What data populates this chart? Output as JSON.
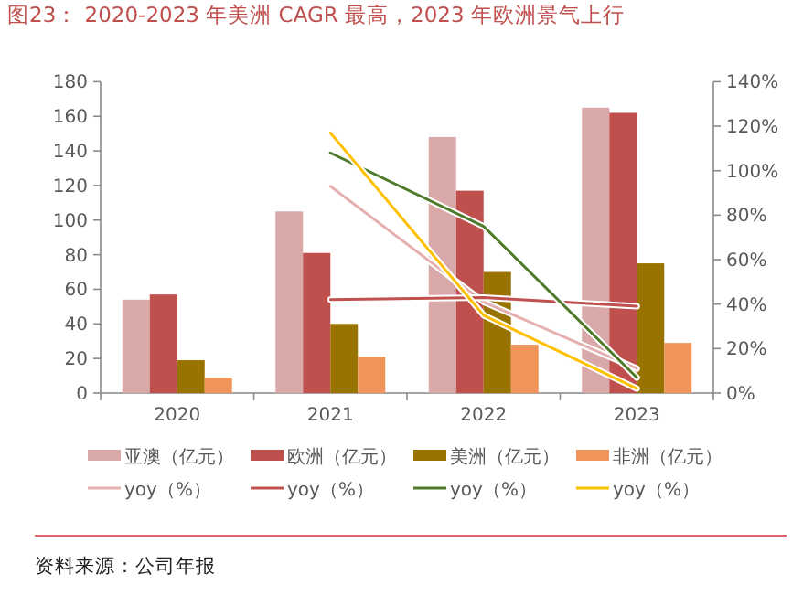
{
  "chart_data": {
    "type": "bar",
    "title": "图23：  2020-2023 年美洲 CAGR 最高，2023 年欧洲景气上行",
    "categories": [
      "2020",
      "2021",
      "2022",
      "2023"
    ],
    "series": [
      {
        "name": "亚澳（亿元）",
        "color": "#d9a9a9",
        "values": [
          54,
          105,
          148,
          165
        ]
      },
      {
        "name": "欧洲（亿元）",
        "color": "#c0504d",
        "values": [
          57,
          81,
          117,
          162
        ]
      },
      {
        "name": "美洲（亿元）",
        "color": "#997300",
        "values": [
          19,
          40,
          70,
          75
        ]
      },
      {
        "name": "非洲（亿元）",
        "color": "#f0955a",
        "values": [
          9,
          21,
          28,
          29
        ]
      },
      {
        "name": "yoy（%）",
        "type": "line",
        "axis": "y2",
        "color": "#e6b0b0",
        "values": [
          null,
          93,
          41,
          11
        ]
      },
      {
        "name": "yoy（%）",
        "type": "line",
        "axis": "y2",
        "color": "#c0504d",
        "values": [
          null,
          42,
          43,
          39
        ]
      },
      {
        "name": "yoy（%）",
        "type": "line",
        "axis": "y2",
        "color": "#4f7a2a",
        "values": [
          null,
          108,
          75,
          7
        ]
      },
      {
        "name": "yoy（%）",
        "type": "line",
        "axis": "y2",
        "color": "#ffc000",
        "values": [
          null,
          117,
          35,
          2
        ]
      }
    ],
    "ylim": [
      0,
      180
    ],
    "yticks": [
      0,
      20,
      40,
      60,
      80,
      100,
      120,
      140,
      160,
      180
    ],
    "y2lim": [
      0,
      140
    ],
    "y2ticks": [
      {
        "value": 0,
        "label": "0%"
      },
      {
        "value": 20,
        "label": "20%"
      },
      {
        "value": 40,
        "label": "40%"
      },
      {
        "value": 60,
        "label": "60%"
      },
      {
        "value": 80,
        "label": "80%"
      },
      {
        "value": 100,
        "label": "100%"
      },
      {
        "value": 120,
        "label": "120%"
      },
      {
        "value": 140,
        "label": "140%"
      }
    ],
    "grid": false,
    "legend": "bottom",
    "marker": "none",
    "annotations": [
      "资料来源：公司年报"
    ]
  }
}
